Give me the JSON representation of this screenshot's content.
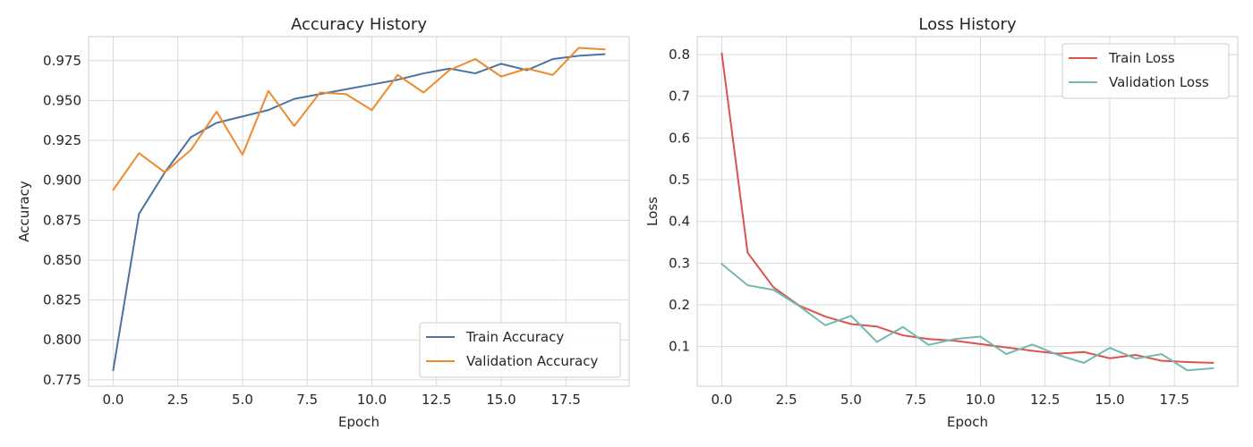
{
  "chart_data": [
    {
      "type": "line",
      "title": "Accuracy History",
      "xlabel": "Epoch",
      "ylabel": "Accuracy",
      "xlim": [
        -0.95,
        19.95
      ],
      "ylim": [
        0.771,
        0.99
      ],
      "xticks": [
        0.0,
        2.5,
        5.0,
        7.5,
        10.0,
        12.5,
        15.0,
        17.5
      ],
      "xtick_labels": [
        "0.0",
        "2.5",
        "5.0",
        "7.5",
        "10.0",
        "12.5",
        "15.0",
        "17.5"
      ],
      "yticks": [
        0.775,
        0.8,
        0.825,
        0.85,
        0.875,
        0.9,
        0.925,
        0.95,
        0.975
      ],
      "ytick_labels": [
        "0.775",
        "0.800",
        "0.825",
        "0.850",
        "0.875",
        "0.900",
        "0.925",
        "0.950",
        "0.975"
      ],
      "grid": true,
      "legend_position": "lower-right",
      "x": [
        0,
        1,
        2,
        3,
        4,
        5,
        6,
        7,
        8,
        9,
        10,
        11,
        12,
        13,
        14,
        15,
        16,
        17,
        18,
        19
      ],
      "series": [
        {
          "name": "Train Accuracy",
          "color": "#4c72a0",
          "values": [
            0.781,
            0.879,
            0.905,
            0.927,
            0.936,
            0.94,
            0.944,
            0.951,
            0.954,
            0.957,
            0.96,
            0.963,
            0.967,
            0.97,
            0.967,
            0.973,
            0.969,
            0.976,
            0.978,
            0.979
          ]
        },
        {
          "name": "Validation Accuracy",
          "color": "#ee8a2f",
          "values": [
            0.894,
            0.917,
            0.905,
            0.919,
            0.943,
            0.916,
            0.956,
            0.934,
            0.955,
            0.954,
            0.944,
            0.966,
            0.955,
            0.969,
            0.976,
            0.965,
            0.97,
            0.966,
            0.983,
            0.982
          ]
        }
      ]
    },
    {
      "type": "line",
      "title": "Loss History",
      "xlabel": "Epoch",
      "ylabel": "Loss",
      "xlim": [
        -0.95,
        19.95
      ],
      "ylim": [
        0.005,
        0.843
      ],
      "xticks": [
        0.0,
        2.5,
        5.0,
        7.5,
        10.0,
        12.5,
        15.0,
        17.5
      ],
      "xtick_labels": [
        "0.0",
        "2.5",
        "5.0",
        "7.5",
        "10.0",
        "12.5",
        "15.0",
        "17.5"
      ],
      "yticks": [
        0.1,
        0.2,
        0.3,
        0.4,
        0.5,
        0.6,
        0.7,
        0.8
      ],
      "ytick_labels": [
        "0.1",
        "0.2",
        "0.3",
        "0.4",
        "0.5",
        "0.6",
        "0.7",
        "0.8"
      ],
      "grid": true,
      "legend_position": "upper-right",
      "x": [
        0,
        1,
        2,
        3,
        4,
        5,
        6,
        7,
        8,
        9,
        10,
        11,
        12,
        13,
        14,
        15,
        16,
        17,
        18,
        19
      ],
      "series": [
        {
          "name": "Train Loss",
          "color": "#d9534f",
          "values": [
            0.803,
            0.325,
            0.242,
            0.198,
            0.172,
            0.154,
            0.148,
            0.127,
            0.118,
            0.114,
            0.106,
            0.098,
            0.09,
            0.083,
            0.087,
            0.072,
            0.08,
            0.066,
            0.063,
            0.061
          ]
        },
        {
          "name": "Validation Loss",
          "color": "#72b8b0",
          "values": [
            0.298,
            0.247,
            0.236,
            0.197,
            0.151,
            0.174,
            0.111,
            0.147,
            0.104,
            0.118,
            0.124,
            0.082,
            0.105,
            0.08,
            0.061,
            0.097,
            0.071,
            0.082,
            0.043,
            0.048
          ]
        }
      ]
    }
  ]
}
